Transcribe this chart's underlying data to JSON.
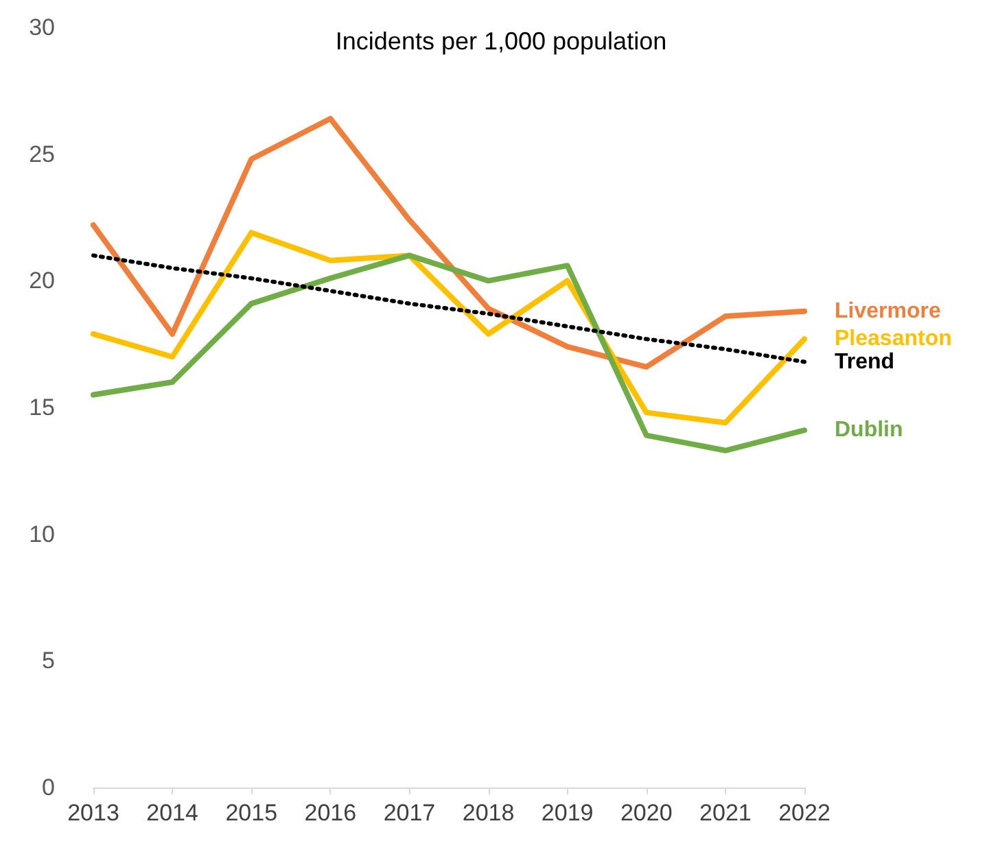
{
  "chart_data": {
    "type": "line",
    "title": "Incidents per 1,000 population",
    "categories": [
      "2013",
      "2014",
      "2015",
      "2016",
      "2017",
      "2018",
      "2019",
      "2020",
      "2021",
      "2022"
    ],
    "series": [
      {
        "name": "Livermore",
        "color": "#f07f3c",
        "values": [
          22.2,
          17.9,
          24.8,
          26.4,
          22.4,
          18.9,
          17.4,
          16.6,
          18.6,
          18.8
        ]
      },
      {
        "name": "Pleasanton",
        "color": "#ffc000",
        "values": [
          17.9,
          17.0,
          21.9,
          20.8,
          21.0,
          17.9,
          20.0,
          14.8,
          14.4,
          17.7
        ]
      },
      {
        "name": "Trend",
        "color": "#000000",
        "line_style": "dotted",
        "values": [
          21.0,
          20.5,
          20.1,
          19.6,
          19.1,
          18.7,
          18.2,
          17.7,
          17.3,
          16.8
        ]
      },
      {
        "name": "Dublin",
        "color": "#70ad47",
        "values": [
          15.5,
          16.0,
          19.1,
          20.1,
          21.0,
          20.0,
          20.6,
          13.9,
          13.3,
          14.1
        ]
      }
    ],
    "ylim": [
      0,
      30
    ],
    "yticks": [
      0,
      5,
      10,
      15,
      20,
      25,
      30
    ],
    "grid": false,
    "legend": false,
    "marker": "none",
    "line_style": "solid"
  }
}
